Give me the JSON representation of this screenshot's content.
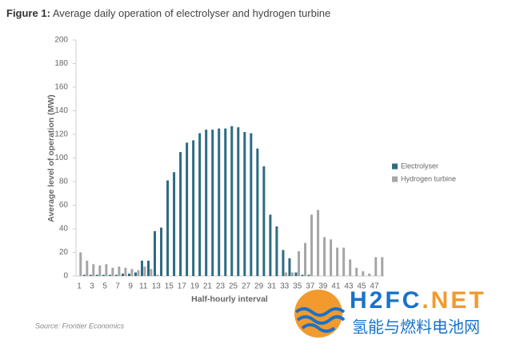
{
  "chart_data": {
    "type": "bar",
    "title_prefix": "Figure 1:",
    "title": "Average daily operation of electrolyser and hydrogen turbine",
    "x_label": "Half-hourly interval",
    "y_label": "Average level of operation (MW)",
    "source": "Source: Frontier Economics",
    "categories": [
      "1",
      null,
      "3",
      null,
      "5",
      null,
      "7",
      null,
      "9",
      null,
      "11",
      null,
      "13",
      null,
      "15",
      null,
      "17",
      null,
      "19",
      null,
      "21",
      null,
      "23",
      null,
      "25",
      null,
      "27",
      null,
      "29",
      null,
      "31",
      null,
      "33",
      null,
      "35",
      null,
      "37",
      null,
      "39",
      null,
      "41",
      null,
      "43",
      null,
      "45",
      null,
      "47",
      null
    ],
    "series": [
      {
        "name": "Electrolyser",
        "color": "#2d6b83",
        "values": [
          0,
          1,
          1,
          1,
          1,
          1,
          1,
          2,
          2,
          3,
          13,
          13,
          38,
          41,
          81,
          88,
          105,
          113,
          115,
          121,
          124,
          124,
          125,
          125,
          127,
          126,
          122,
          121,
          108,
          93,
          52,
          42,
          22,
          15,
          3,
          1,
          1,
          0,
          0,
          0,
          0,
          0,
          0,
          0,
          0,
          0,
          0,
          0
        ]
      },
      {
        "name": "Hydrogen turbine",
        "color": "#a6a6a6",
        "values": [
          20,
          13,
          10,
          9,
          10,
          7,
          8,
          7,
          6,
          5,
          8,
          6,
          1,
          0,
          0,
          0,
          0,
          0,
          0,
          0,
          0,
          0,
          0,
          0,
          0,
          0,
          0,
          0,
          0,
          0,
          0,
          0,
          3,
          3,
          21,
          28,
          52,
          56,
          33,
          31,
          24,
          24,
          14,
          7,
          4,
          2,
          16,
          16
        ]
      }
    ],
    "ylim": [
      0,
      200
    ],
    "yticks": [
      0,
      20,
      40,
      60,
      80,
      100,
      120,
      140,
      160,
      180,
      200
    ],
    "grid": false,
    "legend": "right"
  },
  "watermark": {
    "brand": "H2FC",
    "domain": ".NET",
    "subtitle": "氢能与燃料电池网"
  }
}
